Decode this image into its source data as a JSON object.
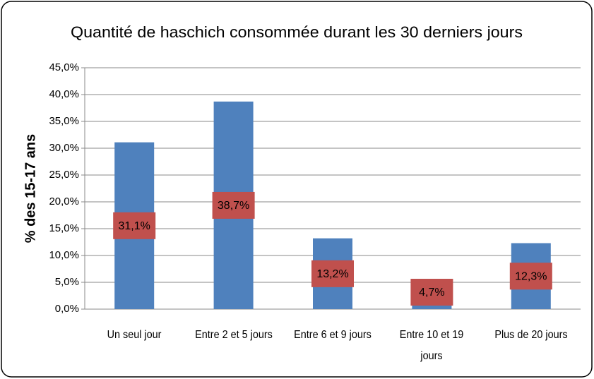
{
  "chart_data": {
    "type": "bar",
    "title": "Quantité de haschich consommée durant les 30 derniers jours",
    "y_label": "% des 15-17 ans",
    "categories": [
      "Un seul jour",
      "Entre 2  et 5 jours",
      "Entre 6 et 9 jours",
      "Entre 10 et 19 jours",
      "Plus de 20 jours"
    ],
    "values": [
      31.1,
      38.7,
      13.2,
      4.7,
      12.3
    ],
    "value_labels": [
      "31,1%",
      "38,7%",
      "13,2%",
      "4,7%",
      "12,3%"
    ],
    "color": "#4f81bd",
    "label_color": "#c0504d",
    "ylim": [
      0,
      45
    ],
    "yticks": [
      {
        "value": 0,
        "label": "0,0%"
      },
      {
        "value": 5,
        "label": "5,0%"
      },
      {
        "value": 10,
        "label": "10,0%"
      },
      {
        "value": 15,
        "label": "15,0%"
      },
      {
        "value": 20,
        "label": "20,0%"
      },
      {
        "value": 25,
        "label": "25,0%"
      },
      {
        "value": 30,
        "label": "30,0%"
      },
      {
        "value": 35,
        "label": "35,0%"
      },
      {
        "value": 40,
        "label": "40,0%"
      },
      {
        "value": 45,
        "label": "45,0%"
      }
    ],
    "grid": true
  }
}
